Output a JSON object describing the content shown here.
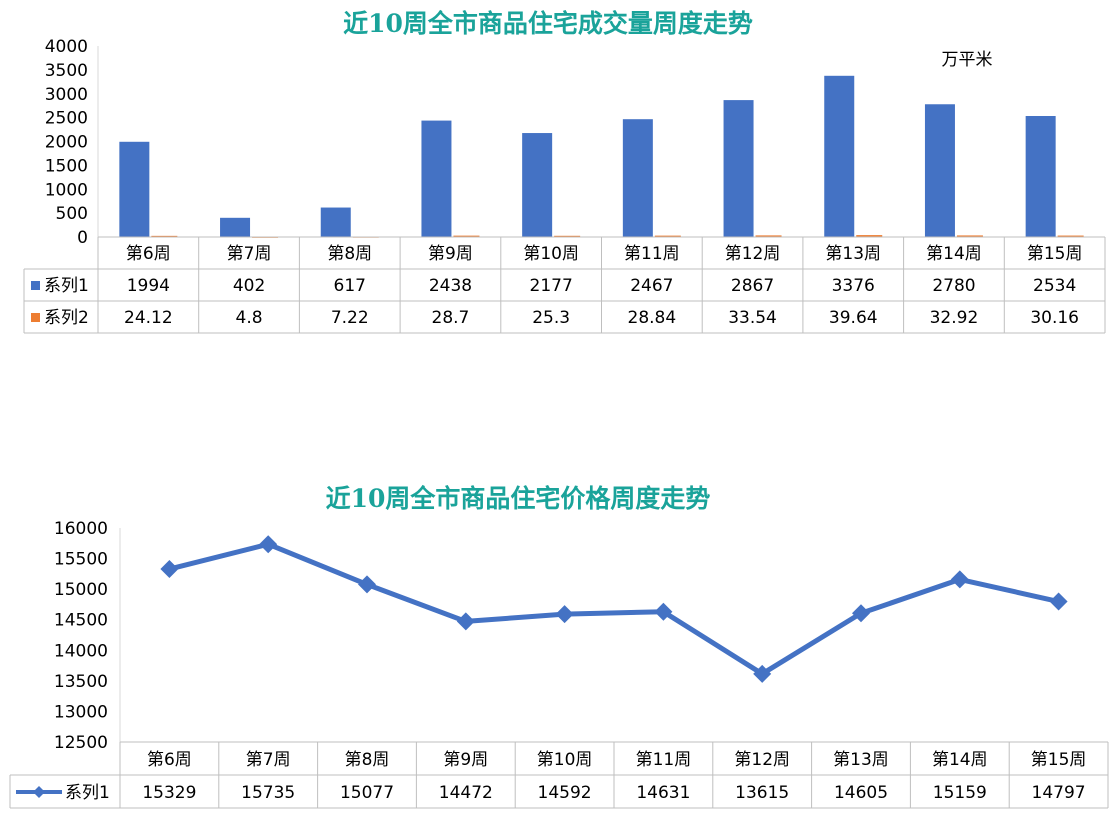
{
  "chart_data": [
    {
      "type": "bar",
      "title": "近10周全市商品住宅成交量周度走势",
      "unit_label": "万平米",
      "categories": [
        "第6周",
        "第7周",
        "第8周",
        "第9周",
        "第10周",
        "第11周",
        "第12周",
        "第13周",
        "第14周",
        "第15周"
      ],
      "series": [
        {
          "name": "系列1",
          "color": "#4472c4",
          "values": [
            1994,
            402,
            617,
            2438,
            2177,
            2467,
            2867,
            3376,
            2780,
            2534
          ]
        },
        {
          "name": "系列2",
          "color": "#ed7d31",
          "values": [
            24.12,
            4.8,
            7.22,
            28.7,
            25.3,
            28.84,
            33.54,
            39.64,
            32.92,
            30.16
          ]
        }
      ],
      "ylim": [
        0,
        4000
      ],
      "yticks": [
        0,
        500,
        1000,
        1500,
        2000,
        2500,
        3000,
        3500,
        4000
      ],
      "legend": "data-table",
      "grid": false
    },
    {
      "type": "line",
      "title": "近10周全市商品住宅价格周度走势",
      "categories": [
        "第6周",
        "第7周",
        "第8周",
        "第9周",
        "第10周",
        "第11周",
        "第12周",
        "第13周",
        "第14周",
        "第15周"
      ],
      "series": [
        {
          "name": "系列1",
          "color": "#4472c4",
          "marker": "diamond",
          "values": [
            15329,
            15735,
            15077,
            14472,
            14592,
            14631,
            13615,
            14605,
            15159,
            14797
          ]
        }
      ],
      "ylim": [
        12500,
        16000
      ],
      "yticks": [
        12500,
        13000,
        13500,
        14000,
        14500,
        15000,
        15500,
        16000
      ],
      "legend": "data-table",
      "grid": false
    }
  ]
}
